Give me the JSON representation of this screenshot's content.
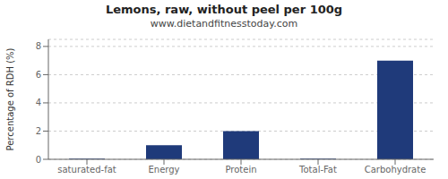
{
  "chart_data": {
    "type": "bar",
    "title": "Lemons, raw, without peel per 100g",
    "subtitle": "www.dietandfitnesstoday.com",
    "categories": [
      "saturated-fat",
      "Energy",
      "Protein",
      "Total-Fat",
      "Carbohydrate"
    ],
    "values": [
      0.05,
      1.0,
      2.0,
      0.05,
      7.0
    ],
    "color": "#1f3a7a",
    "ylabel": "Percentage of RDH (%)",
    "ylim": [
      0,
      8.5
    ],
    "yticks": [
      0,
      2,
      4,
      6,
      8
    ],
    "grid": true
  }
}
